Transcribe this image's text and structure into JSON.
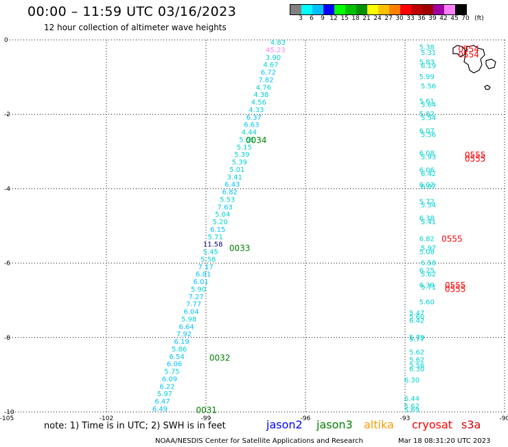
{
  "title": "00:00 – 11:59 UTC 03/16/2023",
  "subtitle": "12 hour collection of altimeter wave heights",
  "colorbar": {
    "colors": [
      "#808080",
      "#00ffff",
      "#00c0ff",
      "#0000ff",
      "#00ff00",
      "#00c000",
      "#009000",
      "#ffff00",
      "#ffc000",
      "#ff8000",
      "#ff0000",
      "#c00000",
      "#a00000",
      "#a000a0",
      "#ff80ff",
      "#000000"
    ],
    "labels": [
      "3",
      "6",
      "9",
      "12",
      "15",
      "18",
      "21",
      "24",
      "27",
      "30",
      "33",
      "36",
      "39",
      "42",
      "45",
      "70",
      "(ft)"
    ]
  },
  "map": {
    "lon_range": [
      -105,
      -90
    ],
    "lat_range": [
      -10,
      0
    ],
    "lon_ticks": [
      "-105",
      "-102",
      "-99",
      "-96",
      "-93",
      "-90"
    ],
    "lat_ticks": [
      "0",
      "-2",
      "-4",
      "-6",
      "-8",
      "-10"
    ],
    "track_west": [
      {
        "v": "4.83",
        "c": "#00d0d0"
      },
      {
        "v": "45.23",
        "c": "#ff80ff"
      },
      {
        "v": "3.90",
        "c": "#00d0d0"
      },
      {
        "v": "4.67",
        "c": "#00d0d0"
      },
      {
        "v": "6.72",
        "c": "#00c0ff"
      },
      {
        "v": "7.82",
        "c": "#00c0ff"
      },
      {
        "v": "4.76",
        "c": "#00d0d0"
      },
      {
        "v": "4.38",
        "c": "#00d0d0"
      },
      {
        "v": "4.56",
        "c": "#00d0d0"
      },
      {
        "v": "4.33",
        "c": "#00d0d0"
      },
      {
        "v": "6.37",
        "c": "#00c0ff"
      },
      {
        "v": "6.63",
        "c": "#00c0ff"
      },
      {
        "v": "4.44",
        "c": "#00d0d0"
      },
      {
        "v": "5.65",
        "c": "#00d0d0"
      },
      {
        "v": "5.15",
        "c": "#00d0d0"
      },
      {
        "v": "5.39",
        "c": "#00d0d0"
      },
      {
        "v": "5.39",
        "c": "#00d0d0"
      },
      {
        "v": "5.01",
        "c": "#00d0d0"
      },
      {
        "v": "3.41",
        "c": "#00d0d0"
      },
      {
        "v": "6.43",
        "c": "#00c0ff"
      },
      {
        "v": "6.82",
        "c": "#00c0ff"
      },
      {
        "v": "5.53",
        "c": "#00d0d0"
      },
      {
        "v": "7.63",
        "c": "#00c0ff"
      },
      {
        "v": "5.04",
        "c": "#00d0d0"
      },
      {
        "v": "5.20",
        "c": "#00d0d0"
      },
      {
        "v": "6.15",
        "c": "#00c0ff"
      },
      {
        "v": "5.71",
        "c": "#00d0d0"
      },
      {
        "v": "11.58",
        "c": "#000080"
      },
      {
        "v": "5.45",
        "c": "#00d0d0"
      },
      {
        "v": "5.58",
        "c": "#00d0d0"
      },
      {
        "v": "7.17",
        "c": "#00c0ff"
      },
      {
        "v": "6.81",
        "c": "#00c0ff"
      },
      {
        "v": "6.01",
        "c": "#00c0ff"
      },
      {
        "v": "5.90",
        "c": "#00d0d0"
      },
      {
        "v": "7.27",
        "c": "#00c0ff"
      },
      {
        "v": "7.77",
        "c": "#00c0ff"
      },
      {
        "v": "6.04",
        "c": "#00c0ff"
      },
      {
        "v": "5.98",
        "c": "#00d0d0"
      },
      {
        "v": "6.64",
        "c": "#00c0ff"
      },
      {
        "v": "7.92",
        "c": "#00c0ff"
      },
      {
        "v": "6.19",
        "c": "#00c0ff"
      },
      {
        "v": "5.86",
        "c": "#00d0d0"
      },
      {
        "v": "6.54",
        "c": "#00c0ff"
      },
      {
        "v": "6.06",
        "c": "#00c0ff"
      },
      {
        "v": "5.75",
        "c": "#00d0d0"
      },
      {
        "v": "6.09",
        "c": "#00c0ff"
      },
      {
        "v": "6.22",
        "c": "#00c0ff"
      },
      {
        "v": "5.97",
        "c": "#00d0d0"
      },
      {
        "v": "6.47",
        "c": "#00c0ff"
      },
      {
        "v": "6.49",
        "c": "#00c0ff"
      }
    ],
    "track_east": [
      {
        "v": "5.38",
        "lat": -0.2
      },
      {
        "v": "5.31",
        "lat": -0.35
      },
      {
        "v": "5.83",
        "lat": -0.6
      },
      {
        "v": "6.19",
        "lat": -0.7
      },
      {
        "v": "5.99",
        "lat": -1.0
      },
      {
        "v": "5.56",
        "lat": -1.25
      },
      {
        "v": "5.61",
        "lat": -1.65
      },
      {
        "v": "5.64",
        "lat": -1.75
      },
      {
        "v": "5.82",
        "lat": -2.0
      },
      {
        "v": "5.54",
        "lat": -2.1
      },
      {
        "v": "6.07",
        "lat": -2.45
      },
      {
        "v": "5.56",
        "lat": -2.55
      },
      {
        "v": "6.08",
        "lat": -3.05
      },
      {
        "v": "5.93",
        "lat": -3.15
      },
      {
        "v": "6.06",
        "lat": -3.5
      },
      {
        "v": "6.42",
        "lat": -3.6
      },
      {
        "v": "6.02",
        "lat": -3.9
      },
      {
        "v": "6.07",
        "lat": -3.95
      },
      {
        "v": "5.72",
        "lat": -4.35
      },
      {
        "v": "5.54",
        "lat": -4.45
      },
      {
        "v": "6.38",
        "lat": -4.8
      },
      {
        "v": "5.41",
        "lat": -4.9
      },
      {
        "v": "6.82",
        "lat": -5.35
      },
      {
        "v": "5.97",
        "lat": -5.6
      },
      {
        "v": "5.08",
        "lat": -5.7
      },
      {
        "v": "6.58",
        "lat": -6.0
      },
      {
        "v": "6.25",
        "lat": -6.2
      },
      {
        "v": "5.62",
        "lat": -6.3
      },
      {
        "v": "6.39",
        "lat": -6.6
      },
      {
        "v": "5.71",
        "lat": -6.65
      },
      {
        "v": "5.60",
        "lat": -7.05
      },
      {
        "v": "5.47",
        "lat": -7.35
      },
      {
        "v": "5.60",
        "lat": -7.45
      },
      {
        "v": "6.42",
        "lat": -7.55
      },
      {
        "v": "5.79",
        "lat": -8.0
      },
      {
        "v": "5.77",
        "lat": -8.05
      },
      {
        "v": "5.62",
        "lat": -8.4
      },
      {
        "v": "5.62",
        "lat": -8.6
      },
      {
        "v": "5.56",
        "lat": -8.75
      },
      {
        "v": "6.30",
        "lat": -8.85
      },
      {
        "v": "6.30",
        "lat": -9.15
      },
      {
        "v": "6.44",
        "lat": -9.65
      },
      {
        "v": "5.62",
        "lat": -9.85
      },
      {
        "v": "5.69",
        "lat": -9.95
      }
    ],
    "time_labels": [
      {
        "t": "0034",
        "lon": -97.8,
        "lat": -2.7,
        "c": "#008000"
      },
      {
        "t": "0033",
        "lon": -98.3,
        "lat": -5.6,
        "c": "#008000"
      },
      {
        "t": "0032",
        "lon": -98.9,
        "lat": -8.55,
        "c": "#008000"
      },
      {
        "t": "0031",
        "lon": -99.3,
        "lat": -9.95,
        "c": "#008000"
      },
      {
        "t": "0554",
        "lon": -91.4,
        "lat": -0.25,
        "c": "#ff0000"
      },
      {
        "t": "0554",
        "lon": -91.4,
        "lat": -0.4,
        "c": "#ff0000"
      },
      {
        "t": "0555",
        "lon": -91.2,
        "lat": -3.1,
        "c": "#ff0000"
      },
      {
        "t": "0555",
        "lon": -91.2,
        "lat": -3.2,
        "c": "#ff0000"
      },
      {
        "t": "0555",
        "lon": -91.9,
        "lat": -5.35,
        "c": "#ff0000"
      },
      {
        "t": "0555",
        "lon": -91.8,
        "lat": -6.6,
        "c": "#ff0000"
      },
      {
        "t": "0555",
        "lon": -91.8,
        "lat": -6.7,
        "c": "#ff0000"
      }
    ]
  },
  "note": "note: 1) Time is in UTC; 2) SWH is in feet",
  "legend": [
    {
      "label": "jason2",
      "color": "#0000ff"
    },
    {
      "label": "jason3",
      "color": "#008000"
    },
    {
      "label": "altika",
      "color": "#ff9900"
    },
    {
      "label": "cryosat",
      "color": "#ff0000"
    },
    {
      "label": "s3a",
      "color": "#cc0000"
    }
  ],
  "credit": "NOAA/NESDIS Center for Satellite Applications and Research",
  "timestamp": "Mar 18 08:31:20 UTC 2023"
}
